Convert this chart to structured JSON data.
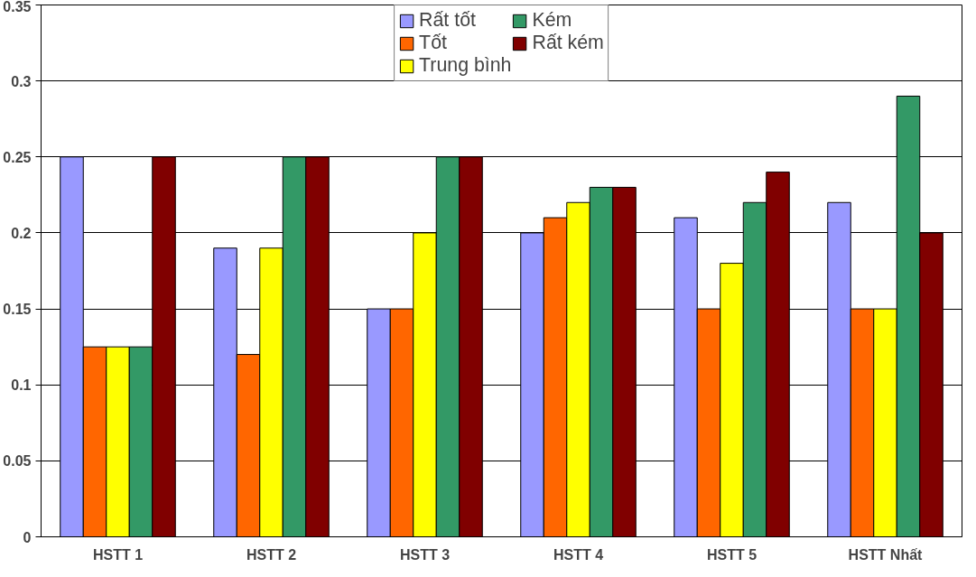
{
  "chart_data": {
    "type": "bar",
    "categories": [
      "HSTT 1",
      "HSTT 2",
      "HSTT 3",
      "HSTT 4",
      "HSTT 5",
      "HSTT Nhất"
    ],
    "series": [
      {
        "name": "Rất tốt",
        "color": "#9999ff",
        "values": [
          0.25,
          0.19,
          0.15,
          0.2,
          0.21,
          0.22
        ]
      },
      {
        "name": "Tốt",
        "color": "#ff6600",
        "values": [
          0.125,
          0.12,
          0.15,
          0.21,
          0.15,
          0.15
        ]
      },
      {
        "name": "Trung bình",
        "color": "#ffff00",
        "values": [
          0.125,
          0.19,
          0.2,
          0.22,
          0.18,
          0.15
        ]
      },
      {
        "name": "Kém",
        "color": "#339966",
        "values": [
          0.125,
          0.25,
          0.25,
          0.23,
          0.22,
          0.29
        ]
      },
      {
        "name": "Rất kém",
        "color": "#800000",
        "values": [
          0.25,
          0.25,
          0.25,
          0.23,
          0.24,
          0.2
        ]
      }
    ],
    "ylim": [
      0,
      0.35
    ],
    "yticks": [
      0,
      0.05,
      0.1,
      0.15,
      0.2,
      0.25,
      0.3,
      0.35
    ],
    "grid": "y",
    "legend": "top"
  }
}
